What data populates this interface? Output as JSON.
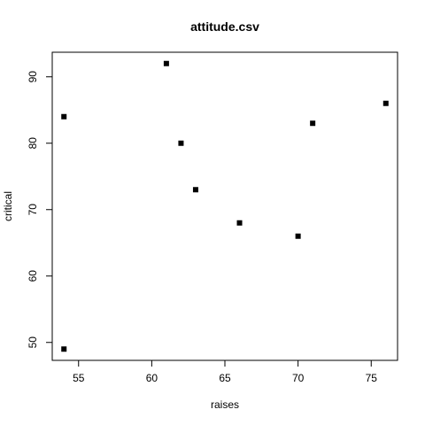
{
  "chart_data": {
    "type": "scatter",
    "title": "attitude.csv",
    "xlabel": "raises",
    "ylabel": "critical",
    "xlim": [
      53.2,
      76.8
    ],
    "ylim": [
      47.3,
      93.7
    ],
    "x_ticks": [
      55,
      60,
      65,
      70,
      75
    ],
    "y_ticks": [
      50,
      60,
      70,
      80,
      90
    ],
    "grid": false,
    "marker": "filled-square",
    "marker_color": "#000000",
    "points": [
      {
        "x": 61,
        "y": 92
      },
      {
        "x": 54,
        "y": 84
      },
      {
        "x": 62,
        "y": 80
      },
      {
        "x": 63,
        "y": 73
      },
      {
        "x": 66,
        "y": 68
      },
      {
        "x": 70,
        "y": 66
      },
      {
        "x": 71,
        "y": 83
      },
      {
        "x": 76,
        "y": 86
      },
      {
        "x": 54,
        "y": 49
      }
    ]
  }
}
